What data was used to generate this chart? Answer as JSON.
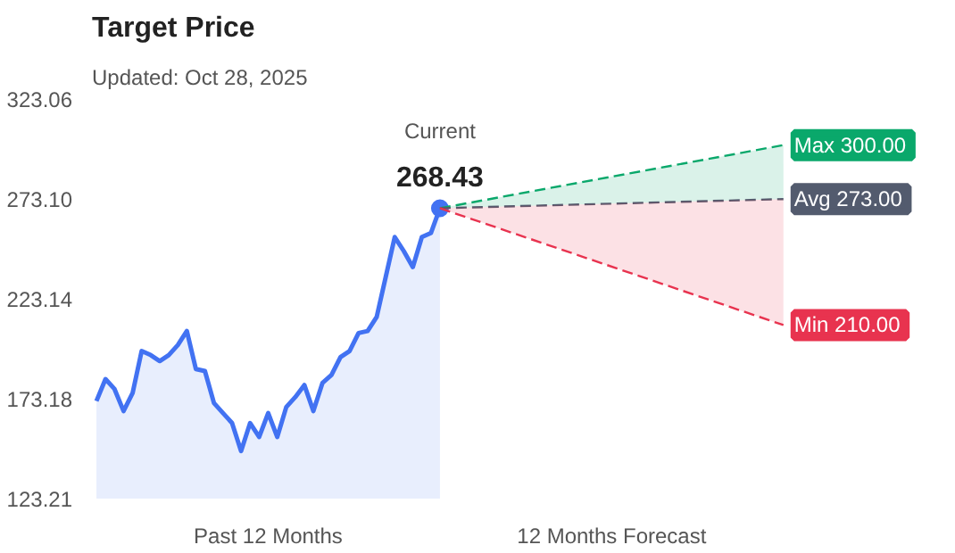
{
  "chart_data": {
    "type": "line",
    "title": "Target Price",
    "subtitle": "Updated: Oct 28, 2025",
    "categories": [
      null,
      null,
      null,
      null,
      null,
      null,
      null,
      null,
      null,
      null,
      null,
      null,
      null,
      null,
      null,
      null,
      null,
      null,
      null,
      "Past 12 Months",
      null,
      null,
      null,
      null,
      null,
      null,
      null,
      null,
      null,
      null,
      null,
      null,
      null,
      null,
      null,
      null,
      null,
      null,
      null,
      null,
      null,
      null,
      null,
      null,
      null,
      null,
      null,
      null,
      null,
      null,
      null,
      null,
      null,
      null,
      null,
      null,
      null,
      "12 Months Forecast",
      null,
      null,
      null,
      null,
      null,
      null,
      null,
      null,
      null,
      null,
      null,
      null,
      null,
      null,
      null,
      null,
      null,
      null,
      null,
      null,
      null,
      null,
      null,
      null,
      null,
      null,
      null,
      null,
      null,
      null,
      null,
      null,
      null,
      null,
      null,
      null
    ],
    "ylim": [
      123.21,
      323.06
    ],
    "yticks": [
      123.21,
      173.18,
      223.14,
      {
        "value": 273.1,
        "label": "273.10"
      },
      323.06
    ],
    "grid": false,
    "annotations": [
      "Current"
    ],
    "series": [
      {
        "type": "area",
        "color": "#4272f2",
        "values": [
          172,
          183,
          178,
          167,
          176,
          197,
          195,
          192,
          195,
          200,
          207,
          188,
          187,
          171,
          166,
          161,
          147,
          161,
          154,
          166,
          154,
          169,
          174,
          180,
          167,
          181,
          185,
          194,
          197,
          206,
          207,
          214,
          234,
          254,
          247,
          239,
          254,
          256,
          268.43,
          null,
          null,
          null,
          null,
          null,
          null,
          null,
          null,
          null,
          null,
          null,
          null,
          null,
          null,
          null,
          null,
          null,
          null,
          null,
          null,
          null,
          null,
          null,
          null,
          null,
          null,
          null,
          null,
          null,
          null,
          null,
          null,
          null,
          null,
          null,
          null,
          null,
          null,
          null,
          null,
          null,
          null,
          null,
          null,
          null,
          null,
          null,
          null,
          null,
          null,
          null,
          null,
          null,
          null,
          null
        ],
        "value_labels": [
          null,
          null,
          null,
          null,
          null,
          null,
          null,
          null,
          null,
          null,
          null,
          null,
          null,
          null,
          null,
          null,
          null,
          null,
          null,
          null,
          null,
          null,
          null,
          null,
          null,
          null,
          null,
          null,
          null,
          null,
          null,
          null,
          null,
          null,
          null,
          null,
          null,
          null,
          "268.43",
          null,
          null,
          null,
          null,
          null,
          null,
          null,
          null,
          null,
          null,
          null,
          null,
          null,
          null,
          null,
          null,
          null,
          null,
          null,
          null,
          null,
          null,
          null,
          null,
          null,
          null,
          null,
          null,
          null,
          null,
          null,
          null,
          null,
          null,
          null,
          null,
          null,
          null,
          null,
          null,
          null,
          null,
          null,
          null,
          null,
          null,
          null,
          null,
          null,
          null,
          null,
          null,
          null,
          null,
          null
        ]
      },
      {
        "name": "Max",
        "line_style": "dashed",
        "color": "#0aa86b",
        "values": [
          null,
          null,
          null,
          null,
          null,
          null,
          null,
          null,
          null,
          null,
          null,
          null,
          null,
          null,
          null,
          null,
          null,
          null,
          null,
          null,
          null,
          null,
          null,
          null,
          null,
          null,
          null,
          null,
          null,
          null,
          null,
          null,
          null,
          null,
          null,
          null,
          null,
          null,
          268.43,
          null,
          null,
          null,
          null,
          null,
          null,
          null,
          null,
          null,
          null,
          null,
          null,
          null,
          null,
          null,
          null,
          null,
          null,
          null,
          null,
          null,
          null,
          null,
          null,
          null,
          null,
          null,
          null,
          null,
          null,
          null,
          null,
          null,
          null,
          null,
          null,
          null,
          300.0,
          null,
          null,
          null,
          null,
          null,
          null,
          null,
          null,
          null,
          null,
          null,
          null,
          null,
          null,
          null,
          null,
          null
        ],
        "lower": [
          null,
          null,
          null,
          null,
          null,
          null,
          null,
          null,
          null,
          null,
          null,
          null,
          null,
          null,
          null,
          null,
          null,
          null,
          null,
          null,
          null,
          null,
          null,
          null,
          null,
          null,
          null,
          null,
          null,
          null,
          null,
          null,
          null,
          null,
          null,
          null,
          null,
          null,
          268.43,
          null,
          null,
          null,
          null,
          null,
          null,
          null,
          null,
          null,
          null,
          null,
          null,
          null,
          null,
          null,
          null,
          null,
          null,
          null,
          null,
          null,
          null,
          null,
          null,
          null,
          null,
          null,
          null,
          null,
          null,
          null,
          null,
          null,
          null,
          null,
          null,
          null,
          273.0,
          null,
          null,
          null,
          null,
          null,
          null,
          null,
          null,
          null,
          null,
          null,
          null,
          null,
          null,
          null,
          null,
          null
        ],
        "upper": [
          null,
          null,
          null,
          null,
          null,
          null,
          null,
          null,
          null,
          null,
          null,
          null,
          null,
          null,
          null,
          null,
          null,
          null,
          null,
          null,
          null,
          null,
          null,
          null,
          null,
          null,
          null,
          null,
          null,
          null,
          null,
          null,
          null,
          null,
          null,
          null,
          null,
          null,
          268.43,
          null,
          null,
          null,
          null,
          null,
          null,
          null,
          null,
          null,
          null,
          null,
          null,
          null,
          null,
          null,
          null,
          null,
          null,
          null,
          null,
          null,
          null,
          null,
          null,
          null,
          null,
          null,
          null,
          null,
          null,
          null,
          null,
          null,
          null,
          null,
          null,
          null,
          300.0,
          null,
          null,
          null,
          null,
          null,
          null,
          null,
          null,
          null,
          null,
          null,
          null,
          null,
          null,
          null,
          null,
          null
        ],
        "value_labels": [
          null,
          null,
          null,
          null,
          null,
          null,
          null,
          null,
          null,
          null,
          null,
          null,
          null,
          null,
          null,
          null,
          null,
          null,
          null,
          null,
          null,
          null,
          null,
          null,
          null,
          null,
          null,
          null,
          null,
          null,
          null,
          null,
          null,
          null,
          null,
          null,
          null,
          null,
          null,
          null,
          null,
          null,
          null,
          null,
          null,
          null,
          null,
          null,
          null,
          null,
          null,
          null,
          null,
          null,
          null,
          null,
          null,
          null,
          null,
          null,
          null,
          null,
          null,
          null,
          null,
          null,
          null,
          null,
          null,
          null,
          null,
          null,
          null,
          null,
          null,
          null,
          "300.00",
          null,
          null,
          null,
          null,
          null,
          null,
          null,
          null,
          null,
          null,
          null,
          null,
          null,
          null,
          null,
          null,
          null
        ]
      },
      {
        "name": "Avg",
        "line_style": "dashed",
        "color": "#535b6e",
        "values": [
          null,
          null,
          null,
          null,
          null,
          null,
          null,
          null,
          null,
          null,
          null,
          null,
          null,
          null,
          null,
          null,
          null,
          null,
          null,
          null,
          null,
          null,
          null,
          null,
          null,
          null,
          null,
          null,
          null,
          null,
          null,
          null,
          null,
          null,
          null,
          null,
          null,
          null,
          268.43,
          null,
          null,
          null,
          null,
          null,
          null,
          null,
          null,
          null,
          null,
          null,
          null,
          null,
          null,
          null,
          null,
          null,
          null,
          null,
          null,
          null,
          null,
          null,
          null,
          null,
          null,
          null,
          null,
          null,
          null,
          null,
          null,
          null,
          null,
          null,
          null,
          null,
          273.0,
          null,
          null,
          null,
          null,
          null,
          null,
          null,
          null,
          null,
          null,
          null,
          null,
          null,
          null,
          null,
          null,
          null
        ],
        "value_labels": [
          null,
          null,
          null,
          null,
          null,
          null,
          null,
          null,
          null,
          null,
          null,
          null,
          null,
          null,
          null,
          null,
          null,
          null,
          null,
          null,
          null,
          null,
          null,
          null,
          null,
          null,
          null,
          null,
          null,
          null,
          null,
          null,
          null,
          null,
          null,
          null,
          null,
          null,
          null,
          null,
          null,
          null,
          null,
          null,
          null,
          null,
          null,
          null,
          null,
          null,
          null,
          null,
          null,
          null,
          null,
          null,
          null,
          null,
          null,
          null,
          null,
          null,
          null,
          null,
          null,
          null,
          null,
          null,
          null,
          null,
          null,
          null,
          null,
          null,
          null,
          null,
          "273.00",
          null,
          null,
          null,
          null,
          null,
          null,
          null,
          null,
          null,
          null,
          null,
          null,
          null,
          null,
          null,
          null,
          null
        ]
      },
      {
        "name": "Min",
        "line_style": "dashed",
        "color": "#e8334f",
        "values": [
          null,
          null,
          null,
          null,
          null,
          null,
          null,
          null,
          null,
          null,
          null,
          null,
          null,
          null,
          null,
          null,
          null,
          null,
          null,
          null,
          null,
          null,
          null,
          null,
          null,
          null,
          null,
          null,
          null,
          null,
          null,
          null,
          null,
          null,
          null,
          null,
          null,
          null,
          268.43,
          null,
          null,
          null,
          null,
          null,
          null,
          null,
          null,
          null,
          null,
          null,
          null,
          null,
          null,
          null,
          null,
          null,
          null,
          null,
          null,
          null,
          null,
          null,
          null,
          null,
          null,
          null,
          null,
          null,
          null,
          null,
          null,
          null,
          null,
          null,
          null,
          null,
          210.0,
          null,
          null,
          null,
          null,
          null,
          null,
          null,
          null,
          null,
          null,
          null,
          null,
          null,
          null,
          null,
          null,
          null
        ],
        "lower": [
          null,
          null,
          null,
          null,
          null,
          null,
          null,
          null,
          null,
          null,
          null,
          null,
          null,
          null,
          null,
          null,
          null,
          null,
          null,
          null,
          null,
          null,
          null,
          null,
          null,
          null,
          null,
          null,
          null,
          null,
          null,
          null,
          null,
          null,
          null,
          null,
          null,
          null,
          268.43,
          null,
          null,
          null,
          null,
          null,
          null,
          null,
          null,
          null,
          null,
          null,
          null,
          null,
          null,
          null,
          null,
          null,
          null,
          null,
          null,
          null,
          null,
          null,
          null,
          null,
          null,
          null,
          null,
          null,
          null,
          null,
          null,
          null,
          null,
          null,
          null,
          null,
          210.0,
          null,
          null,
          null,
          null,
          null,
          null,
          null,
          null,
          null,
          null,
          null,
          null,
          null,
          null,
          null,
          null,
          null
        ],
        "upper": [
          null,
          null,
          null,
          null,
          null,
          null,
          null,
          null,
          null,
          null,
          null,
          null,
          null,
          null,
          null,
          null,
          null,
          null,
          null,
          null,
          null,
          null,
          null,
          null,
          null,
          null,
          null,
          null,
          null,
          null,
          null,
          null,
          null,
          null,
          null,
          null,
          null,
          null,
          268.43,
          null,
          null,
          null,
          null,
          null,
          null,
          null,
          null,
          null,
          null,
          null,
          null,
          null,
          null,
          null,
          null,
          null,
          null,
          null,
          null,
          null,
          null,
          null,
          null,
          null,
          null,
          null,
          null,
          null,
          null,
          null,
          null,
          null,
          null,
          null,
          null,
          null,
          273.0,
          null,
          null,
          null,
          null,
          null,
          null,
          null,
          null,
          null,
          null,
          null,
          null,
          null,
          null,
          null,
          null,
          null
        ],
        "value_labels": [
          null,
          null,
          null,
          null,
          null,
          null,
          null,
          null,
          null,
          null,
          null,
          null,
          null,
          null,
          null,
          null,
          null,
          null,
          null,
          null,
          null,
          null,
          null,
          null,
          null,
          null,
          null,
          null,
          null,
          null,
          null,
          null,
          null,
          null,
          null,
          null,
          null,
          null,
          null,
          null,
          null,
          null,
          null,
          null,
          null,
          null,
          null,
          null,
          null,
          null,
          null,
          null,
          null,
          null,
          null,
          null,
          null,
          null,
          null,
          null,
          null,
          null,
          null,
          null,
          null,
          null,
          null,
          null,
          null,
          null,
          null,
          null,
          null,
          null,
          null,
          null,
          "210.00",
          null,
          null,
          null,
          null,
          null,
          null,
          null,
          null,
          null,
          null,
          null,
          null,
          null,
          null,
          null,
          null,
          null
        ]
      }
    ]
  }
}
